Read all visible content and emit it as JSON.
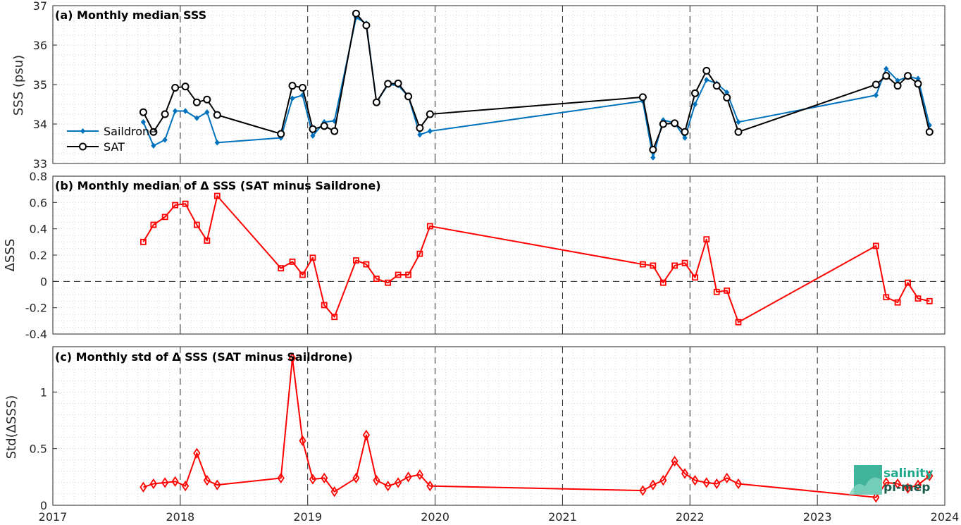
{
  "chart_data": [
    {
      "type": "line",
      "title": "(a) Monthly median SSS",
      "xlabel": "",
      "ylabel": "SSS (psu)",
      "xlim": [
        2017,
        2024
      ],
      "ylim": [
        33,
        37
      ],
      "yticks": [
        "33",
        "34",
        "35",
        "36",
        "37"
      ],
      "grid": true,
      "legend_position": "middle-left",
      "series": [
        {
          "name": "Saildrone",
          "color": "#0072BD",
          "marker": "diamond",
          "x": [
            2017.71,
            2017.79,
            2017.88,
            2017.96,
            2018.04,
            2018.13,
            2018.21,
            2018.29,
            2018.79,
            2018.88,
            2018.96,
            2019.04,
            2019.13,
            2019.21,
            2019.38,
            2019.46,
            2019.54,
            2019.63,
            2019.71,
            2019.79,
            2019.88,
            2019.96,
            2021.63,
            2021.71,
            2021.79,
            2021.88,
            2021.96,
            2022.04,
            2022.13,
            2022.21,
            2022.29,
            2022.38,
            2023.46,
            2023.54,
            2023.63,
            2023.71,
            2023.79,
            2023.88
          ],
          "y": [
            34.05,
            33.45,
            33.6,
            34.33,
            34.33,
            34.15,
            34.3,
            33.53,
            33.65,
            34.65,
            34.73,
            33.7,
            34.05,
            34.08,
            36.7,
            36.55,
            34.55,
            35,
            34.98,
            34.7,
            33.73,
            33.82,
            34.58,
            33.15,
            34.1,
            34.03,
            33.65,
            34.5,
            35.12,
            35.03,
            34.8,
            34.05,
            34.73,
            35.4,
            35.1,
            35.2,
            35.15,
            33.97
          ]
        },
        {
          "name": "SAT",
          "color": "#000000",
          "marker": "circle",
          "x": [
            2017.71,
            2017.79,
            2017.88,
            2017.96,
            2018.04,
            2018.13,
            2018.21,
            2018.29,
            2018.79,
            2018.88,
            2018.96,
            2019.04,
            2019.13,
            2019.21,
            2019.38,
            2019.46,
            2019.54,
            2019.63,
            2019.71,
            2019.79,
            2019.88,
            2019.96,
            2021.63,
            2021.71,
            2021.79,
            2021.88,
            2021.96,
            2022.04,
            2022.13,
            2022.21,
            2022.29,
            2022.38,
            2023.46,
            2023.54,
            2023.63,
            2023.71,
            2023.79,
            2023.88
          ],
          "y": [
            34.3,
            33.8,
            34.25,
            34.92,
            34.95,
            34.55,
            34.62,
            34.23,
            33.75,
            34.97,
            34.92,
            33.87,
            33.95,
            33.82,
            36.8,
            36.5,
            34.55,
            35.02,
            35.03,
            34.7,
            33.9,
            34.25,
            34.68,
            33.35,
            34.0,
            34.02,
            33.8,
            34.78,
            35.35,
            34.97,
            34.67,
            33.8,
            35.0,
            35.22,
            34.97,
            35.22,
            35.02,
            33.8
          ]
        }
      ]
    },
    {
      "type": "line",
      "title": "(b) Monthly median of Δ SSS (SAT minus Saildrone)",
      "xlabel": "",
      "ylabel": "ΔSSS",
      "xlim": [
        2017,
        2024
      ],
      "ylim": [
        -0.4,
        0.8
      ],
      "yticks": [
        "-0.4",
        "-0.2",
        "0",
        "0.2",
        "0.4",
        "0.6",
        "0.8"
      ],
      "zero_line": true,
      "grid": true,
      "series": [
        {
          "color": "#FF0000",
          "marker": "square",
          "x": [
            2017.71,
            2017.79,
            2017.88,
            2017.96,
            2018.04,
            2018.13,
            2018.21,
            2018.29,
            2018.79,
            2018.88,
            2018.96,
            2019.04,
            2019.13,
            2019.21,
            2019.38,
            2019.46,
            2019.54,
            2019.63,
            2019.71,
            2019.79,
            2019.88,
            2019.96,
            2021.63,
            2021.71,
            2021.79,
            2021.88,
            2021.96,
            2022.04,
            2022.13,
            2022.21,
            2022.29,
            2022.38,
            2023.46,
            2023.54,
            2023.63,
            2023.71,
            2023.79,
            2023.88
          ],
          "y": [
            0.3,
            0.43,
            0.49,
            0.58,
            0.59,
            0.43,
            0.31,
            0.65,
            0.1,
            0.15,
            0.05,
            0.18,
            -0.18,
            -0.27,
            0.16,
            0.13,
            0.02,
            -0.01,
            0.05,
            0.05,
            0.21,
            0.42,
            0.13,
            0.12,
            -0.01,
            0.12,
            0.14,
            0.03,
            0.32,
            -0.08,
            -0.07,
            -0.31,
            0.27,
            -0.12,
            -0.16,
            -0.01,
            -0.13,
            -0.15
          ]
        }
      ]
    },
    {
      "type": "line",
      "title": "(c) Monthly std of Δ SSS (SAT minus Saildrone)",
      "xlabel": "",
      "ylabel": "Std(ΔSSS)",
      "xlim": [
        2017,
        2024
      ],
      "ylim": [
        0,
        1.4
      ],
      "xticks": [
        "2017",
        "2018",
        "2019",
        "2020",
        "2021",
        "2022",
        "2023",
        "2024"
      ],
      "yticks": [
        "0",
        "0.5",
        "1"
      ],
      "grid": true,
      "series": [
        {
          "color": "#FF0000",
          "marker": "diamond-open",
          "x": [
            2017.71,
            2017.79,
            2017.88,
            2017.96,
            2018.04,
            2018.13,
            2018.21,
            2018.29,
            2018.79,
            2018.88,
            2018.96,
            2019.04,
            2019.13,
            2019.21,
            2019.38,
            2019.46,
            2019.54,
            2019.63,
            2019.71,
            2019.79,
            2019.88,
            2019.96,
            2021.63,
            2021.71,
            2021.79,
            2021.88,
            2021.96,
            2022.04,
            2022.13,
            2022.21,
            2022.29,
            2022.38,
            2023.46,
            2023.54,
            2023.63,
            2023.71,
            2023.79,
            2023.88
          ],
          "y": [
            0.16,
            0.19,
            0.2,
            0.21,
            0.17,
            0.46,
            0.22,
            0.18,
            0.24,
            1.3,
            0.57,
            0.23,
            0.24,
            0.12,
            0.24,
            0.62,
            0.22,
            0.17,
            0.2,
            0.25,
            0.27,
            0.17,
            0.13,
            0.18,
            0.22,
            0.39,
            0.28,
            0.22,
            0.2,
            0.19,
            0.24,
            0.19,
            0.07,
            0.2,
            0.19,
            0.15,
            0.18,
            0.26
          ]
        }
      ]
    }
  ],
  "logo": {
    "line1": "salinity",
    "line2": "pi-mep",
    "color1": "#1ea88a",
    "color2": "#1a5c4c"
  }
}
